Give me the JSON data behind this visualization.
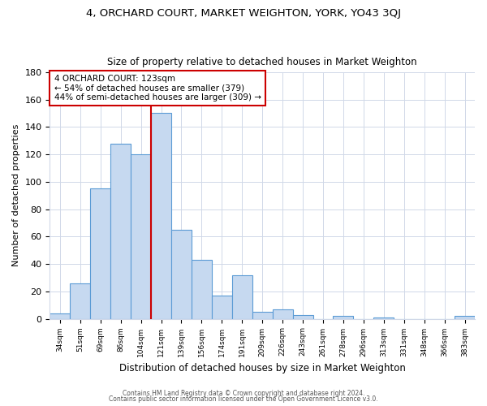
{
  "title": "4, ORCHARD COURT, MARKET WEIGHTON, YORK, YO43 3QJ",
  "subtitle": "Size of property relative to detached houses in Market Weighton",
  "xlabel": "Distribution of detached houses by size in Market Weighton",
  "ylabel": "Number of detached properties",
  "bar_labels": [
    "34sqm",
    "51sqm",
    "69sqm",
    "86sqm",
    "104sqm",
    "121sqm",
    "139sqm",
    "156sqm",
    "174sqm",
    "191sqm",
    "209sqm",
    "226sqm",
    "243sqm",
    "261sqm",
    "278sqm",
    "296sqm",
    "313sqm",
    "331sqm",
    "348sqm",
    "366sqm",
    "383sqm"
  ],
  "bar_values": [
    4,
    26,
    95,
    128,
    120,
    150,
    65,
    43,
    17,
    32,
    5,
    7,
    3,
    0,
    2,
    0,
    1,
    0,
    0,
    0,
    2
  ],
  "bar_color": "#c6d9f0",
  "bar_edge_color": "#5b9bd5",
  "marker_line_index": 5,
  "marker_line_color": "#cc0000",
  "annotation_title": "4 ORCHARD COURT: 123sqm",
  "annotation_line1": "← 54% of detached houses are smaller (379)",
  "annotation_line2": "44% of semi-detached houses are larger (309) →",
  "annotation_box_edge": "#cc0000",
  "ylim": [
    0,
    180
  ],
  "yticks": [
    0,
    20,
    40,
    60,
    80,
    100,
    120,
    140,
    160,
    180
  ],
  "footer1": "Contains HM Land Registry data © Crown copyright and database right 2024.",
  "footer2": "Contains public sector information licensed under the Open Government Licence v3.0.",
  "bg_color": "#ffffff",
  "grid_color": "#d0d8e8"
}
